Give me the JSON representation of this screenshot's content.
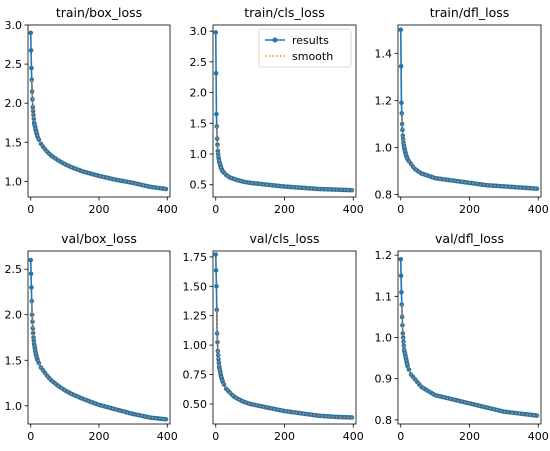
{
  "colors": {
    "results": "#1f77b4",
    "smooth": "#ff7f0e"
  },
  "legend": {
    "results_label": "results",
    "smooth_label": "smooth",
    "placement": "upper-right of train/cls_loss panel"
  },
  "chart_data": [
    {
      "type": "line",
      "title": "train/box_loss",
      "xlim": [
        -8,
        408
      ],
      "ylim": [
        0.8,
        3.0
      ],
      "xticks": [
        0,
        200,
        400
      ],
      "yticks": [
        1.0,
        1.5,
        2.0,
        2.5,
        3.0
      ],
      "ytick_labels": [
        "1.0",
        "1.5",
        "2.0",
        "2.5",
        "3.0"
      ],
      "series": [
        {
          "name": "results",
          "x": [
            0,
            2,
            4,
            6,
            8,
            10,
            15,
            20,
            30,
            40,
            50,
            60,
            80,
            100,
            120,
            150,
            200,
            250,
            300,
            350,
            400
          ],
          "values": [
            2.9,
            2.45,
            2.15,
            1.95,
            1.85,
            1.75,
            1.65,
            1.57,
            1.48,
            1.42,
            1.37,
            1.33,
            1.27,
            1.22,
            1.18,
            1.13,
            1.07,
            1.02,
            0.98,
            0.93,
            0.9
          ]
        }
      ]
    },
    {
      "type": "line",
      "title": "train/cls_loss",
      "xlim": [
        -8,
        408
      ],
      "ylim": [
        0.3,
        3.1
      ],
      "xticks": [
        0,
        200,
        400
      ],
      "yticks": [
        0.5,
        1.0,
        1.5,
        2.0,
        2.5,
        3.0
      ],
      "ytick_labels": [
        "0.5",
        "1.0",
        "1.5",
        "2.0",
        "2.5",
        "3.0"
      ],
      "series": [
        {
          "name": "results",
          "x": [
            0,
            2,
            4,
            6,
            8,
            10,
            15,
            20,
            30,
            40,
            50,
            60,
            80,
            100,
            150,
            200,
            250,
            300,
            350,
            400
          ],
          "values": [
            2.98,
            1.65,
            1.25,
            1.05,
            0.95,
            0.88,
            0.78,
            0.72,
            0.66,
            0.62,
            0.6,
            0.58,
            0.55,
            0.53,
            0.5,
            0.47,
            0.45,
            0.43,
            0.42,
            0.41
          ]
        }
      ]
    },
    {
      "type": "line",
      "title": "train/dfl_loss",
      "xlim": [
        -8,
        408
      ],
      "ylim": [
        0.79,
        1.52
      ],
      "xticks": [
        0,
        200,
        400
      ],
      "yticks": [
        0.8,
        1.0,
        1.2,
        1.4
      ],
      "ytick_labels": [
        "0.8",
        "1.0",
        "1.2",
        "1.4"
      ],
      "series": [
        {
          "name": "results",
          "x": [
            0,
            2,
            4,
            6,
            8,
            10,
            15,
            20,
            30,
            40,
            50,
            60,
            80,
            100,
            150,
            200,
            250,
            300,
            350,
            400
          ],
          "values": [
            1.5,
            1.19,
            1.1,
            1.05,
            1.02,
            1.0,
            0.97,
            0.95,
            0.93,
            0.91,
            0.9,
            0.89,
            0.88,
            0.87,
            0.86,
            0.85,
            0.84,
            0.835,
            0.83,
            0.825
          ]
        }
      ]
    },
    {
      "type": "line",
      "title": "val/box_loss",
      "xlim": [
        -8,
        408
      ],
      "ylim": [
        0.8,
        2.7
      ],
      "xticks": [
        0,
        200,
        400
      ],
      "yticks": [
        1.0,
        1.5,
        2.0,
        2.5
      ],
      "ytick_labels": [
        "1.0",
        "1.5",
        "2.0",
        "2.5"
      ],
      "series": [
        {
          "name": "results",
          "x": [
            0,
            2,
            4,
            6,
            8,
            10,
            15,
            20,
            30,
            40,
            50,
            60,
            80,
            100,
            120,
            150,
            200,
            250,
            300,
            350,
            400
          ],
          "values": [
            2.6,
            2.3,
            2.0,
            1.85,
            1.75,
            1.68,
            1.57,
            1.5,
            1.42,
            1.37,
            1.32,
            1.28,
            1.22,
            1.17,
            1.13,
            1.08,
            1.01,
            0.96,
            0.91,
            0.87,
            0.85
          ]
        }
      ]
    },
    {
      "type": "line",
      "title": "val/cls_loss",
      "xlim": [
        -8,
        408
      ],
      "ylim": [
        0.33,
        1.8
      ],
      "xticks": [
        0,
        200,
        400
      ],
      "yticks": [
        0.5,
        0.75,
        1.0,
        1.25,
        1.5,
        1.75
      ],
      "ytick_labels": [
        "0.50",
        "0.75",
        "1.00",
        "1.25",
        "1.50",
        "1.75"
      ],
      "series": [
        {
          "name": "results",
          "x": [
            0,
            2,
            4,
            6,
            8,
            10,
            15,
            20,
            30,
            40,
            50,
            60,
            80,
            100,
            150,
            200,
            250,
            300,
            350,
            400
          ],
          "values": [
            1.77,
            1.5,
            1.1,
            0.95,
            0.88,
            0.82,
            0.74,
            0.69,
            0.63,
            0.6,
            0.57,
            0.55,
            0.52,
            0.5,
            0.47,
            0.44,
            0.42,
            0.4,
            0.39,
            0.385
          ]
        }
      ]
    },
    {
      "type": "line",
      "title": "val/dfl_loss",
      "xlim": [
        -8,
        408
      ],
      "ylim": [
        0.79,
        1.21
      ],
      "xticks": [
        0,
        200,
        400
      ],
      "yticks": [
        0.8,
        0.9,
        1.0,
        1.1,
        1.2
      ],
      "ytick_labels": [
        "0.8",
        "0.9",
        "1.0",
        "1.1",
        "1.2"
      ],
      "series": [
        {
          "name": "results",
          "x": [
            0,
            2,
            4,
            6,
            8,
            10,
            15,
            20,
            30,
            40,
            50,
            60,
            80,
            100,
            150,
            200,
            250,
            300,
            350,
            400
          ],
          "values": [
            1.19,
            1.11,
            1.05,
            1.01,
            0.99,
            0.97,
            0.95,
            0.93,
            0.91,
            0.9,
            0.89,
            0.88,
            0.87,
            0.86,
            0.85,
            0.84,
            0.83,
            0.82,
            0.815,
            0.81
          ]
        }
      ]
    }
  ]
}
